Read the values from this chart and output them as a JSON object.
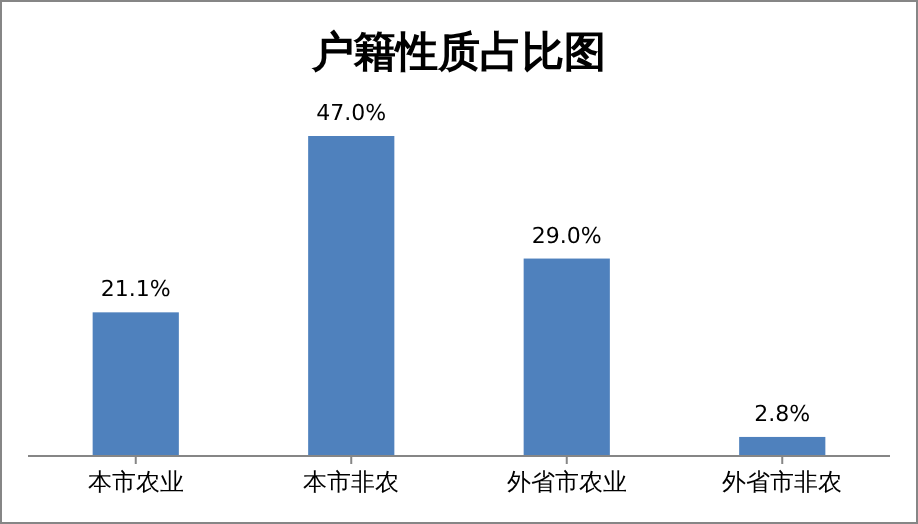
{
  "chart_data": {
    "type": "bar",
    "title": "户籍性质占比图",
    "categories": [
      "本市农业",
      "本市非农",
      "外省市农业",
      "外省市非农"
    ],
    "values": [
      21.1,
      47.0,
      29.0,
      2.8
    ],
    "value_labels": [
      "21.1%",
      "47.0%",
      "29.0%",
      "2.8%"
    ],
    "color": "#4f81bd"
  }
}
